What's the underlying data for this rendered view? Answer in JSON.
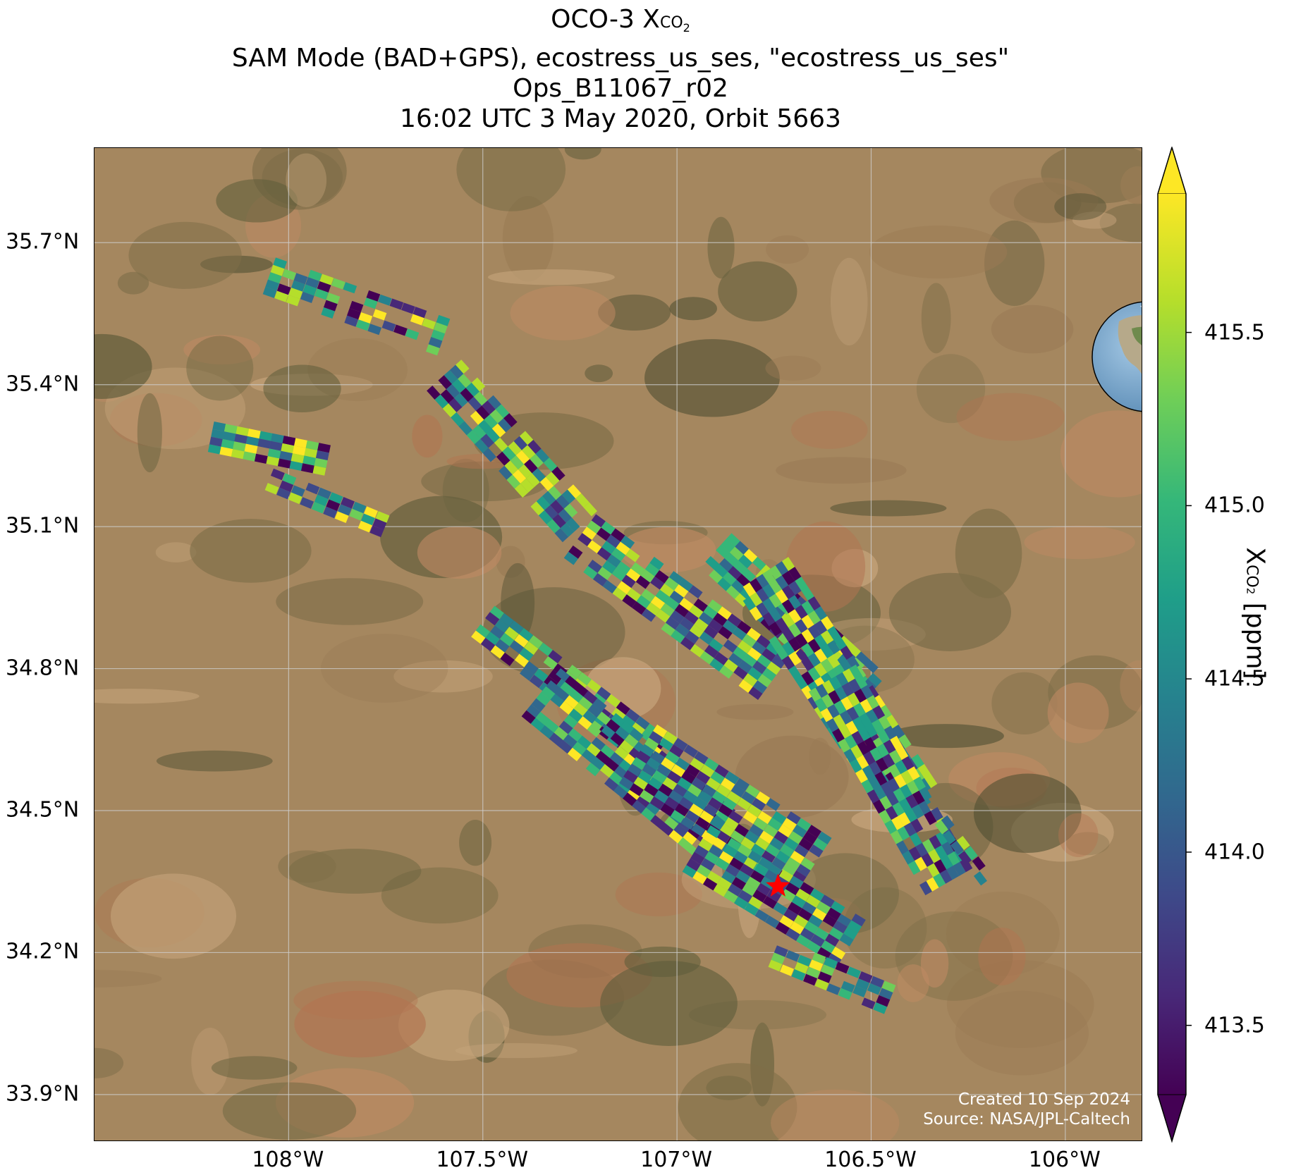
{
  "title": {
    "line1_prefix": "OCO-3 X",
    "line1_sub": "CO",
    "line1_subsub": "2",
    "line2": "SAM Mode (BAD+GPS), ecostress_us_ses, \"ecostress_us_ses\"",
    "line3": "Ops_B11067_r02",
    "line4": "16:02 UTC 3 May 2020, Orbit 5663"
  },
  "map": {
    "lat_ticks": [
      "35.7°N",
      "35.4°N",
      "35.1°N",
      "34.8°N",
      "34.5°N",
      "34.2°N",
      "33.9°N"
    ],
    "lat_values": [
      35.7,
      35.4,
      35.1,
      34.8,
      34.5,
      34.2,
      33.9
    ],
    "lon_ticks": [
      "108°W",
      "107.5°W",
      "107°W",
      "106.5°W",
      "106°W"
    ],
    "lon_values": [
      -108,
      -107.5,
      -107,
      -106.5,
      -106
    ],
    "extent": {
      "lon_min": -108.5,
      "lon_max": -105.8,
      "lat_min": 33.8,
      "lat_max": 35.9
    },
    "target_marker": {
      "lon": -106.74,
      "lat": 34.34,
      "color": "#ff0000",
      "icon": "star-icon"
    },
    "credit_line1": "Created 10 Sep 2024",
    "credit_line2": "Source: NASA/JPL-Caltech",
    "gridlines": true,
    "background": "satellite-imagery"
  },
  "colorbar": {
    "label_prefix": "X",
    "label_sub": "CO",
    "label_subsub": "2",
    "label_suffix": " [ppm]",
    "ticks": [
      "415.5",
      "415.0",
      "414.5",
      "414.0",
      "413.5"
    ],
    "tick_values": [
      415.5,
      415.0,
      414.5,
      414.0,
      413.5
    ],
    "vmin": 413.3,
    "vmax": 415.9,
    "colormap": "viridis",
    "extend": "both"
  },
  "inset_globe": {
    "icon": "globe-icon",
    "marker_color": "#ff0000"
  },
  "colors": {
    "viridis": [
      "#440154",
      "#482878",
      "#3e4989",
      "#31688e",
      "#26828e",
      "#1f9e89",
      "#35b779",
      "#6ece58",
      "#b5de2b",
      "#fde725"
    ]
  }
}
